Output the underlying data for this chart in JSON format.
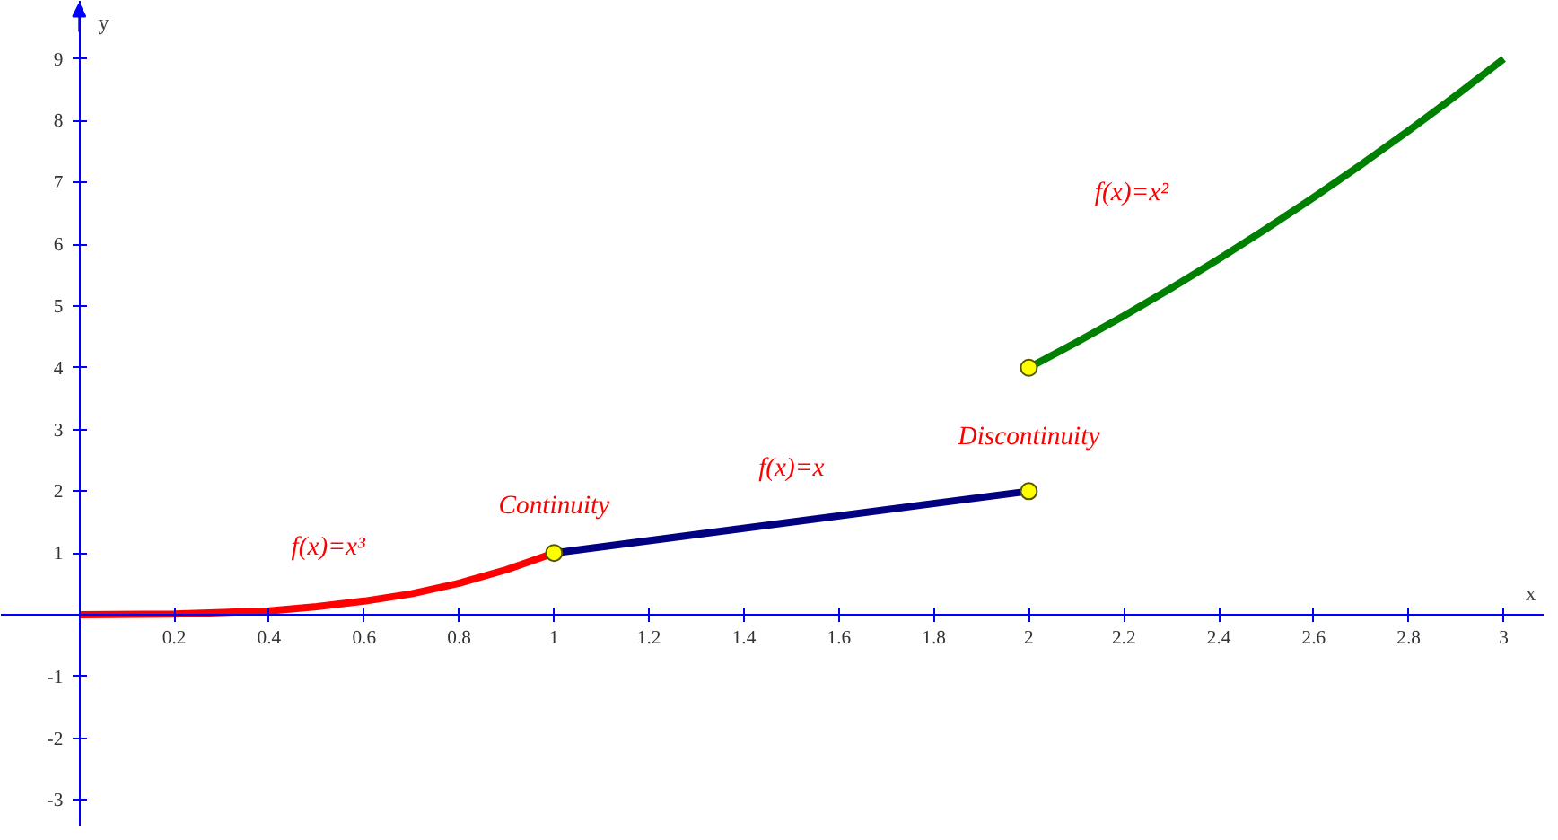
{
  "chart_data": {
    "type": "line",
    "xlabel": "x",
    "ylabel": "y",
    "xlim": [
      -0.165,
      3.086
    ],
    "ylim": [
      -3.43,
      9.94
    ],
    "xticks": [
      {
        "value": 0.2,
        "label": "0.2"
      },
      {
        "value": 0.4,
        "label": "0.4"
      },
      {
        "value": 0.6,
        "label": "0.6"
      },
      {
        "value": 0.8,
        "label": "0.8"
      },
      1,
      {
        "value": 1.2,
        "label": "1.2"
      },
      {
        "value": 1.4,
        "label": "1.4"
      },
      {
        "value": 1.6,
        "label": "1.6"
      },
      {
        "value": 1.8,
        "label": "1.8"
      },
      2,
      {
        "value": 2.2,
        "label": "2.2"
      },
      {
        "value": 2.4,
        "label": "2.4"
      },
      {
        "value": 2.6,
        "label": "2.6"
      },
      {
        "value": 2.8,
        "label": "2.8"
      },
      3
    ],
    "yticks": [
      -3,
      -2,
      -1,
      1,
      2,
      3,
      4,
      5,
      6,
      7,
      8,
      9
    ],
    "grid": false,
    "line_style": "solid",
    "series": [
      {
        "name": "f(x)=x³",
        "color": "#ff0000",
        "x": [
          0,
          0.2,
          0.4,
          0.5,
          0.6,
          0.7,
          0.8,
          0.9,
          1
        ],
        "values": [
          0,
          0.01,
          0.06,
          0.13,
          0.22,
          0.34,
          0.51,
          0.73,
          1
        ]
      },
      {
        "name": "f(x)=x",
        "color": "#000080",
        "x": [
          1,
          2
        ],
        "values": [
          1,
          2
        ]
      },
      {
        "name": "f(x)=x²",
        "color": "#008000",
        "x": [
          2,
          2.1,
          2.2,
          2.3,
          2.4,
          2.5,
          2.6,
          2.7,
          2.8,
          2.9,
          3
        ],
        "values": [
          4,
          4.41,
          4.84,
          5.29,
          5.76,
          6.25,
          6.76,
          7.29,
          7.84,
          8.41,
          9
        ]
      },
      {
        "type": "scatter",
        "color": "#ffff00",
        "marker": "circle",
        "x": [
          1,
          2,
          2
        ],
        "values": [
          1,
          2,
          4
        ]
      }
    ],
    "annotations": [
      "Continuity",
      "Discontinuity"
    ]
  }
}
